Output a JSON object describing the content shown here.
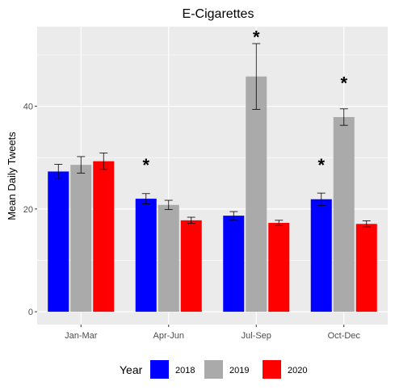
{
  "chart_data": {
    "type": "bar",
    "title": "E-Cigarettes",
    "xlabel": "",
    "ylabel": "Mean Daily Tweets",
    "categories": [
      "Jan-Mar",
      "Apr-Jun",
      "Jul-Sep",
      "Oct-Dec"
    ],
    "ylim": [
      -2.5,
      55.5
    ],
    "yticks": [
      0,
      20,
      40
    ],
    "grid": true,
    "legend": {
      "title": "Year",
      "position": "bottom"
    },
    "series": [
      {
        "name": "2018",
        "color": "#0000ff",
        "values": [
          27.3,
          22.0,
          18.7,
          21.9
        ],
        "err": [
          1.4,
          1.0,
          0.8,
          1.2
        ]
      },
      {
        "name": "2019",
        "color": "#aaaaaa",
        "values": [
          28.6,
          20.8,
          45.8,
          37.9
        ],
        "err": [
          1.6,
          0.9,
          6.4,
          1.6
        ]
      },
      {
        "name": "2020",
        "color": "#ff0000",
        "values": [
          29.3,
          17.8,
          17.3,
          17.1
        ],
        "err": [
          1.6,
          0.6,
          0.5,
          0.6
        ]
      }
    ],
    "annotations": [
      {
        "text": "*",
        "category": "Apr-Jun",
        "series": "2018",
        "y": 28.8
      },
      {
        "text": "*",
        "category": "Jul-Sep",
        "series": "2019",
        "y": 53.7
      },
      {
        "text": "*",
        "category": "Oct-Dec",
        "series": "2018",
        "y": 28.8
      },
      {
        "text": "*",
        "category": "Oct-Dec",
        "series": "2019",
        "y": 44.7
      }
    ]
  }
}
